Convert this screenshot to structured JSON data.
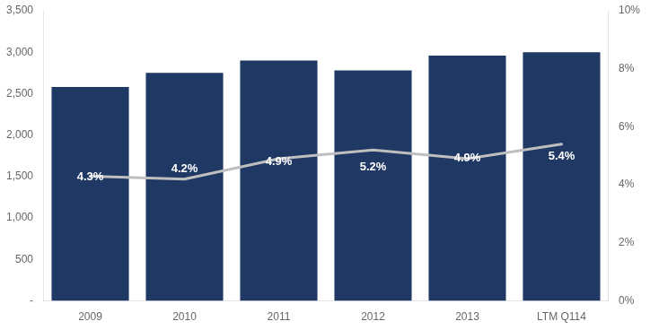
{
  "chart_data": {
    "type": "bar",
    "categories": [
      "2009",
      "2010",
      "2011",
      "2012",
      "2013",
      "LTM Q114"
    ],
    "series": [
      {
        "type": "bar",
        "color": "#1F3864",
        "values": [
          2580,
          2750,
          2900,
          2780,
          2960,
          3000
        ]
      },
      {
        "type": "line",
        "color": "#BFBFBF",
        "axis": "y2",
        "values": [
          4.3,
          4.2,
          4.9,
          5.2,
          4.9,
          5.4
        ],
        "value_labels": [
          "4.3%",
          "4.2%",
          "4.9%",
          "5.2%",
          "4.9%",
          "5.4%"
        ],
        "data_labels": true
      }
    ],
    "ylim": [
      0,
      3500
    ],
    "yticks": [
      {
        "value": 0,
        "label": "-"
      },
      500,
      {
        "value": 1000,
        "label": "1,000"
      },
      {
        "value": 1500,
        "label": "1,500"
      },
      {
        "value": 2000,
        "label": "2,000"
      },
      {
        "value": 2500,
        "label": "2,500"
      },
      {
        "value": 3000,
        "label": "3,000"
      },
      {
        "value": 3500,
        "label": "3,500"
      }
    ],
    "y2lim": [
      0,
      10
    ],
    "y2ticks": [
      {
        "value": 0,
        "label": "0%"
      },
      {
        "value": 2,
        "label": "2%"
      },
      {
        "value": 4,
        "label": "4%"
      },
      {
        "value": 6,
        "label": "6%"
      },
      {
        "value": 8,
        "label": "8%"
      },
      {
        "value": 10,
        "label": "10%"
      }
    ],
    "grid": false
  }
}
